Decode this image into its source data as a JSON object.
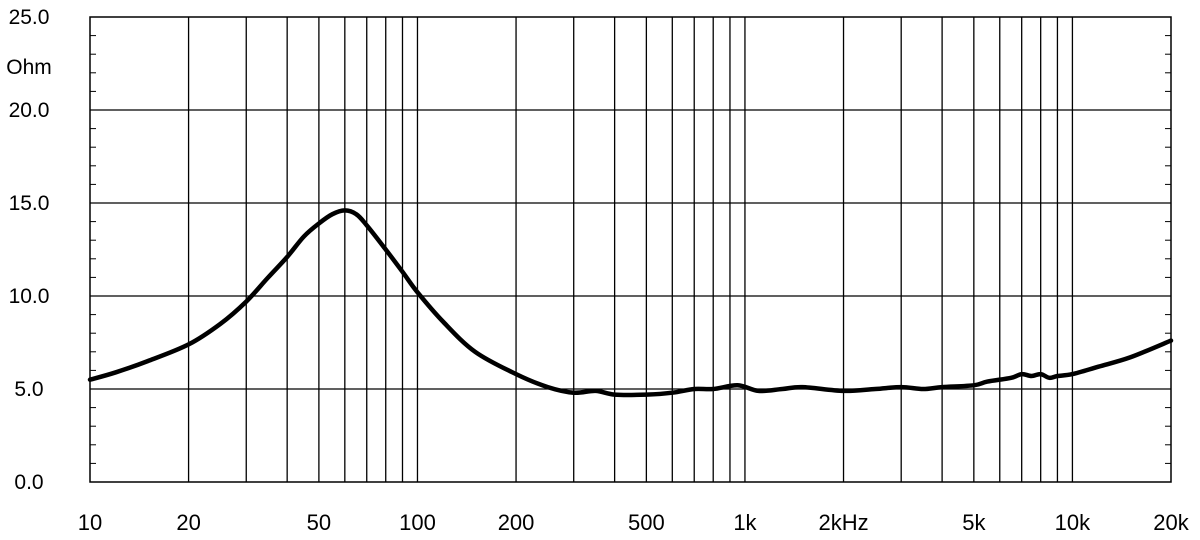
{
  "chart_data": {
    "type": "line",
    "title": "",
    "xlabel": "",
    "ylabel": "",
    "y_unit_label": "Ohm",
    "x_scale": "log",
    "xlim": [
      10,
      20000
    ],
    "ylim": [
      0,
      25
    ],
    "grid": true,
    "legend": "none",
    "line_color": "#000000",
    "y_ticks": [
      {
        "value": 0,
        "label": "0.0"
      },
      {
        "value": 5,
        "label": "5.0"
      },
      {
        "value": 10,
        "label": "10.0"
      },
      {
        "value": 15,
        "label": "15.0"
      },
      {
        "value": 20,
        "label": "20.0"
      },
      {
        "value": 25,
        "label": "25.0"
      }
    ],
    "x_tick_labels": [
      {
        "value": 10,
        "label": "10"
      },
      {
        "value": 20,
        "label": "20"
      },
      {
        "value": 50,
        "label": "50"
      },
      {
        "value": 100,
        "label": "100"
      },
      {
        "value": 200,
        "label": "200"
      },
      {
        "value": 500,
        "label": "500"
      },
      {
        "value": 1000,
        "label": "1k"
      },
      {
        "value": 2000,
        "label": "2kHz"
      },
      {
        "value": 5000,
        "label": "5k"
      },
      {
        "value": 10000,
        "label": "10k"
      },
      {
        "value": 20000,
        "label": "20k"
      }
    ],
    "series": [
      {
        "x": [
          10,
          12,
          15,
          20,
          25,
          30,
          35,
          40,
          45,
          50,
          55,
          60,
          65,
          70,
          80,
          90,
          100,
          120,
          150,
          200,
          250,
          300,
          350,
          400,
          500,
          600,
          700,
          800,
          950,
          1100,
          1300,
          1500,
          2000,
          2500,
          3000,
          3500,
          4000,
          5000,
          5500,
          6500,
          7000,
          7500,
          8000,
          8500,
          9000,
          10000,
          12000,
          15000,
          20000
        ],
        "y": [
          5.5,
          5.9,
          6.5,
          7.4,
          8.5,
          9.7,
          11.0,
          12.1,
          13.2,
          13.9,
          14.4,
          14.6,
          14.4,
          13.8,
          12.5,
          11.3,
          10.2,
          8.6,
          7.0,
          5.8,
          5.1,
          4.8,
          4.9,
          4.7,
          4.7,
          4.8,
          5.0,
          5.0,
          5.2,
          4.9,
          5.0,
          5.1,
          4.9,
          5.0,
          5.1,
          5.0,
          5.1,
          5.2,
          5.4,
          5.6,
          5.8,
          5.7,
          5.8,
          5.6,
          5.7,
          5.8,
          6.2,
          6.7,
          7.6
        ]
      }
    ]
  }
}
